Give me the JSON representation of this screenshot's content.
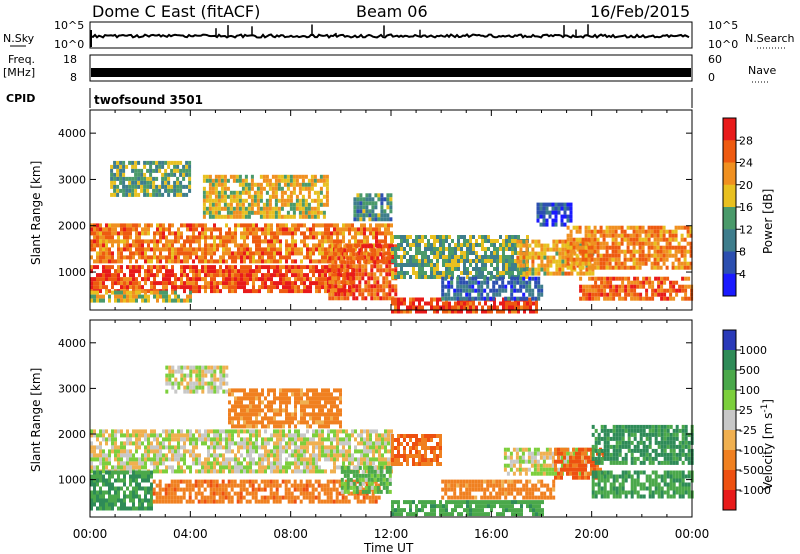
{
  "header": {
    "title": "Dome C East (fitACF)",
    "beam": "Beam 06",
    "date": "16/Feb/2015"
  },
  "top_panels": {
    "nsky_label": "N.Sky",
    "nsky_ticks": [
      "10^5",
      "10^0"
    ],
    "nsearch_label": "N.Search",
    "nsearch_ticks": [
      "10^5",
      "10^0"
    ],
    "freq_label": "Freq.",
    "freq_unit": "[MHz]",
    "freq_ticks": [
      "18",
      "8"
    ],
    "nave_label": "Nave",
    "nave_ticks": [
      "60",
      "0"
    ],
    "cpid_label": "CPID",
    "cpid_value": "twofsound 3501"
  },
  "chart_data": [
    {
      "type": "heatmap",
      "title": "",
      "xlabel": "Time UT",
      "ylabel": "Slant Range [km]",
      "xlim_hours": [
        0,
        24
      ],
      "x_ticks": [
        "00:00",
        "04:00",
        "08:00",
        "12:00",
        "16:00",
        "20:00",
        "00:00"
      ],
      "ylim": [
        180,
        4500
      ],
      "y_ticks": [
        1000,
        2000,
        3000,
        4000
      ],
      "colorbar": {
        "label": "Power [dB]",
        "ticks": [
          "4",
          "8",
          "12",
          "16",
          "20",
          "24",
          "28"
        ],
        "range": [
          0,
          32
        ],
        "colors": [
          "#1a1aff",
          "#2c4fb0",
          "#3e7d8c",
          "#4a9a6a",
          "#e8c020",
          "#f09020",
          "#ee5a10",
          "#e81a1a"
        ]
      },
      "bands": [
        {
          "t0": 0.0,
          "t1": 12.0,
          "r0": 1200,
          "r1": 2050,
          "value": 24
        },
        {
          "t0": 0.0,
          "t1": 10.5,
          "r0": 600,
          "r1": 1150,
          "value": 27
        },
        {
          "t0": 0.0,
          "t1": 4.0,
          "r0": 350,
          "r1": 600,
          "value": 18
        },
        {
          "t0": 0.8,
          "t1": 4.0,
          "r0": 2700,
          "r1": 3400,
          "value": 14
        },
        {
          "t0": 4.5,
          "t1": 9.5,
          "r0": 2200,
          "r1": 3100,
          "value": 19
        },
        {
          "t0": 9.5,
          "t1": 12.2,
          "r0": 400,
          "r1": 1600,
          "value": 26
        },
        {
          "t0": 10.5,
          "t1": 12.0,
          "r0": 2100,
          "r1": 2700,
          "value": 12
        },
        {
          "t0": 12.0,
          "t1": 17.8,
          "r0": 180,
          "r1": 450,
          "value": 28
        },
        {
          "t0": 12.0,
          "t1": 17.5,
          "r0": 900,
          "r1": 1800,
          "value": 14
        },
        {
          "t0": 14.0,
          "t1": 18.0,
          "r0": 450,
          "r1": 900,
          "value": 8
        },
        {
          "t0": 17.0,
          "t1": 20.0,
          "r0": 1000,
          "r1": 1700,
          "value": 20
        },
        {
          "t0": 19.0,
          "t1": 24.0,
          "r0": 1100,
          "r1": 2000,
          "value": 23
        },
        {
          "t0": 19.5,
          "t1": 24.0,
          "r0": 400,
          "r1": 900,
          "value": 25
        },
        {
          "t0": 17.8,
          "t1": 19.2,
          "r0": 2000,
          "r1": 2500,
          "value": 6
        }
      ]
    },
    {
      "type": "heatmap",
      "title": "",
      "xlabel": "Time UT",
      "ylabel": "Slant Range [km]",
      "xlim_hours": [
        0,
        24
      ],
      "x_ticks": [
        "00:00",
        "04:00",
        "08:00",
        "12:00",
        "16:00",
        "20:00",
        "00:00"
      ],
      "ylim": [
        180,
        4500
      ],
      "y_ticks": [
        1000,
        2000,
        3000,
        4000
      ],
      "colorbar": {
        "label": "Velocity [m s",
        "label_sup": "-1",
        "label_tail": "]",
        "ticks": [
          "1000",
          "500",
          "100",
          "25",
          "-25",
          "-100",
          "-500",
          "-1000"
        ],
        "colors": [
          "#2a3ab8",
          "#2e8b57",
          "#4aa84a",
          "#7ccf3c",
          "#c8c8c8",
          "#f0b050",
          "#f08020",
          "#ee5010",
          "#e81a1a"
        ]
      },
      "bands": [
        {
          "t0": 0.0,
          "t1": 12.0,
          "r0": 1200,
          "r1": 2100,
          "value": 0
        },
        {
          "t0": 0.0,
          "t1": 2.5,
          "r0": 400,
          "r1": 1200,
          "value": 300
        },
        {
          "t0": 2.5,
          "t1": 11.5,
          "r0": 550,
          "r1": 1000,
          "value": -200
        },
        {
          "t0": 3.0,
          "t1": 5.5,
          "r0": 2900,
          "r1": 3500,
          "value": 0
        },
        {
          "t0": 5.5,
          "t1": 10.0,
          "r0": 2200,
          "r1": 3000,
          "value": -150
        },
        {
          "t0": 10.0,
          "t1": 12.0,
          "r0": 700,
          "r1": 1300,
          "value": 80
        },
        {
          "t0": 12.0,
          "t1": 14.0,
          "r0": 1300,
          "r1": 2000,
          "value": -300
        },
        {
          "t0": 12.0,
          "t1": 18.0,
          "r0": 250,
          "r1": 550,
          "value": 200
        },
        {
          "t0": 14.0,
          "t1": 18.5,
          "r0": 600,
          "r1": 1000,
          "value": -150
        },
        {
          "t0": 16.5,
          "t1": 20.0,
          "r0": 1100,
          "r1": 1700,
          "value": 0
        },
        {
          "t0": 18.5,
          "t1": 20.5,
          "r0": 1000,
          "r1": 1700,
          "value": -350
        },
        {
          "t0": 20.0,
          "t1": 24.0,
          "r0": 1400,
          "r1": 2200,
          "value": 400
        },
        {
          "t0": 20.0,
          "t1": 24.0,
          "r0": 600,
          "r1": 1200,
          "value": 250
        }
      ]
    }
  ]
}
